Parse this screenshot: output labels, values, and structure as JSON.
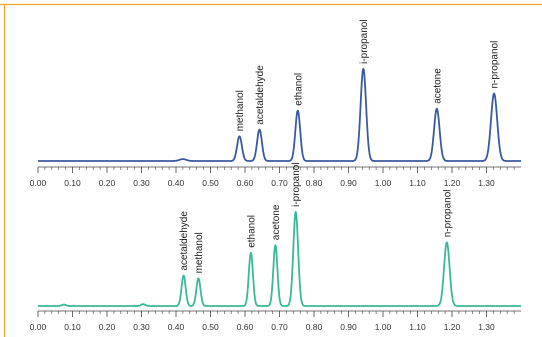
{
  "frame_color": "#f5a623",
  "chart_data": [
    {
      "type": "line",
      "title": "",
      "xlabel": "",
      "ylabel": "",
      "xlim": [
        0,
        1.4
      ],
      "ylim": [
        0,
        100
      ],
      "grid": false,
      "y_axis_shown": false,
      "color": "#3a5aa0",
      "x_ticks": [
        "0.00",
        "0.10",
        "0.20",
        "0.30",
        "0.40",
        "0.50",
        "0.60",
        "0.70",
        "0.80",
        "0.90",
        "1.00",
        "1.10",
        "1.20",
        "1.30"
      ],
      "baseline": 0,
      "peaks": [
        {
          "name": "methanol",
          "x": 0.584,
          "height": 26,
          "width": 0.007
        },
        {
          "name": "acetaldehyde",
          "x": 0.642,
          "height": 33,
          "width": 0.007
        },
        {
          "name": "ethanol",
          "x": 0.753,
          "height": 53,
          "width": 0.007
        },
        {
          "name": "i-propanol",
          "x": 0.943,
          "height": 97,
          "width": 0.008
        },
        {
          "name": "acetone",
          "x": 1.156,
          "height": 55,
          "width": 0.008
        },
        {
          "name": "n-propanol",
          "x": 1.322,
          "height": 71,
          "width": 0.009
        }
      ],
      "minor_bumps": [
        {
          "x": 0.42,
          "height": 2,
          "width": 0.01
        }
      ]
    },
    {
      "type": "line",
      "title": "",
      "xlabel": "",
      "ylabel": "",
      "xlim": [
        0,
        1.4
      ],
      "ylim": [
        0,
        100
      ],
      "grid": false,
      "y_axis_shown": false,
      "color": "#3bb89a",
      "x_ticks": [
        "0.00",
        "0.10",
        "0.20",
        "0.30",
        "0.40",
        "0.50",
        "0.60",
        "0.70",
        "0.80",
        "0.90",
        "1.00",
        "1.10",
        "1.20",
        "1.30"
      ],
      "baseline": 0,
      "peaks": [
        {
          "name": "acetaldehyde",
          "x": 0.422,
          "height": 32,
          "width": 0.006
        },
        {
          "name": "methanol",
          "x": 0.465,
          "height": 29,
          "width": 0.006
        },
        {
          "name": "ethanol",
          "x": 0.617,
          "height": 56,
          "width": 0.006
        },
        {
          "name": "acetone",
          "x": 0.688,
          "height": 64,
          "width": 0.006
        },
        {
          "name": "i-propanol",
          "x": 0.747,
          "height": 99,
          "width": 0.007
        },
        {
          "name": "n-propanol",
          "x": 1.185,
          "height": 67,
          "width": 0.008
        }
      ],
      "minor_bumps": [
        {
          "x": 0.075,
          "height": 1.5,
          "width": 0.006
        },
        {
          "x": 0.305,
          "height": 2,
          "width": 0.006
        }
      ]
    }
  ]
}
